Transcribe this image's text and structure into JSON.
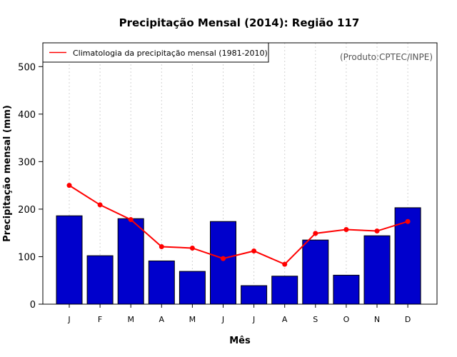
{
  "chart_data": {
    "type": "bar",
    "title": "Precipitação Mensal (2014): Região 117",
    "xlabel": "Mês",
    "ylabel": "Precipitação mensal (mm)",
    "ylim": [
      0,
      550
    ],
    "yticks": [
      0,
      100,
      200,
      300,
      400,
      500
    ],
    "grid": "vertical dotted lines at each month",
    "categories": [
      "J",
      "F",
      "M",
      "A",
      "M",
      "J",
      "J",
      "A",
      "S",
      "O",
      "N",
      "D"
    ],
    "series": [
      {
        "name": "Precipitação mensal 2014",
        "kind": "bar",
        "color": "#0000cc",
        "values": [
          186,
          102,
          180,
          91,
          69,
          174,
          39,
          59,
          135,
          61,
          144,
          203
        ]
      },
      {
        "name": "Climatologia da precipitação mensal (1981-2010)",
        "kind": "line",
        "color": "#ff0000",
        "values": [
          250,
          209,
          178,
          121,
          118,
          96,
          112,
          84,
          149,
          157,
          154,
          174
        ]
      }
    ],
    "legend": {
      "position": "top-left",
      "entries": [
        "Climatologia da precipitação mensal (1981-2010)"
      ]
    },
    "annotation": "(Produto:CPTEC/INPE)"
  }
}
